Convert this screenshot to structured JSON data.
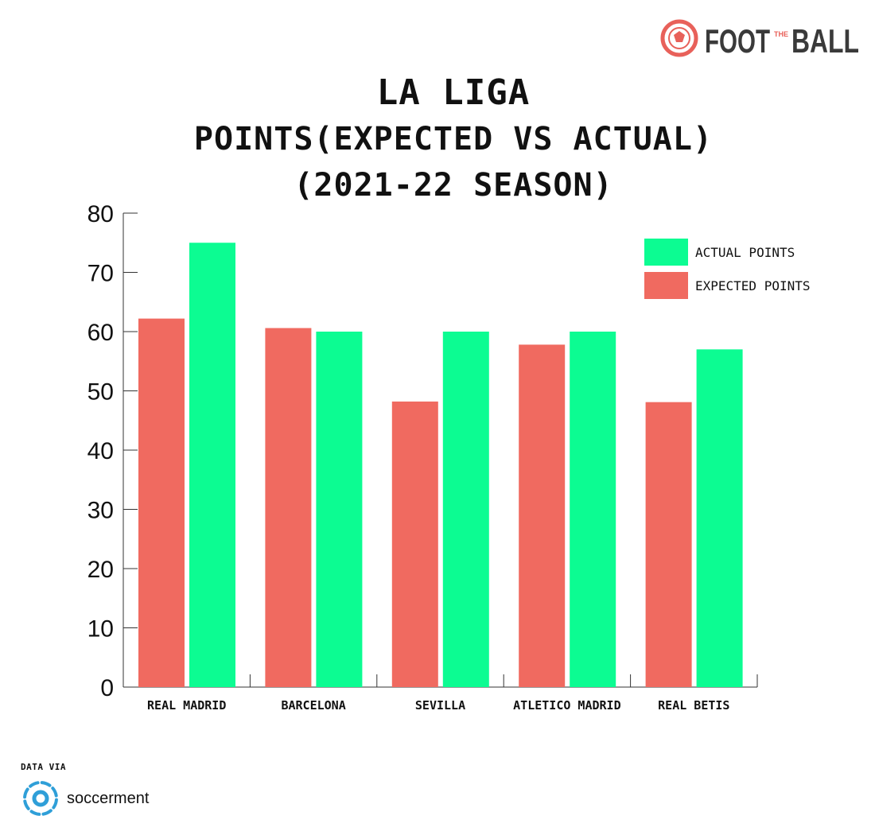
{
  "brand": {
    "text_foot": "FOOT",
    "text_the": "THE",
    "text_ball": "BALL",
    "accent_color": "#e8615a",
    "text_color": "#3a3a3a",
    "icon": "football-icon"
  },
  "credit": {
    "via_label": "DATA VIA",
    "source_name": "soccerment",
    "icon": "soccerment-logo-icon",
    "icon_color": "#2f9fd8"
  },
  "chart_data": {
    "type": "bar",
    "title": [
      "LA LIGA",
      "POINTS(EXPECTED VS ACTUAL)",
      "(2021-22 SEASON)"
    ],
    "categories": [
      "REAL MADRID",
      "BARCELONA",
      "SEVILLA",
      "ATLETICO MADRID",
      "REAL BETIS"
    ],
    "series": [
      {
        "name": "EXPECTED POINTS",
        "color": "#f06a60",
        "values": [
          62.2,
          60.6,
          48.2,
          57.8,
          48.1
        ]
      },
      {
        "name": "ACTUAL POINTS",
        "color": "#0cfc92",
        "values": [
          75,
          60,
          60,
          60,
          57
        ]
      }
    ],
    "legend_order": [
      "ACTUAL POINTS",
      "EXPECTED POINTS"
    ],
    "legend_position": "top-right",
    "ylim": [
      0,
      80
    ],
    "yticks": [
      0,
      10,
      20,
      30,
      40,
      50,
      60,
      70,
      80
    ],
    "grid": false,
    "xlabel": "",
    "ylabel": ""
  }
}
